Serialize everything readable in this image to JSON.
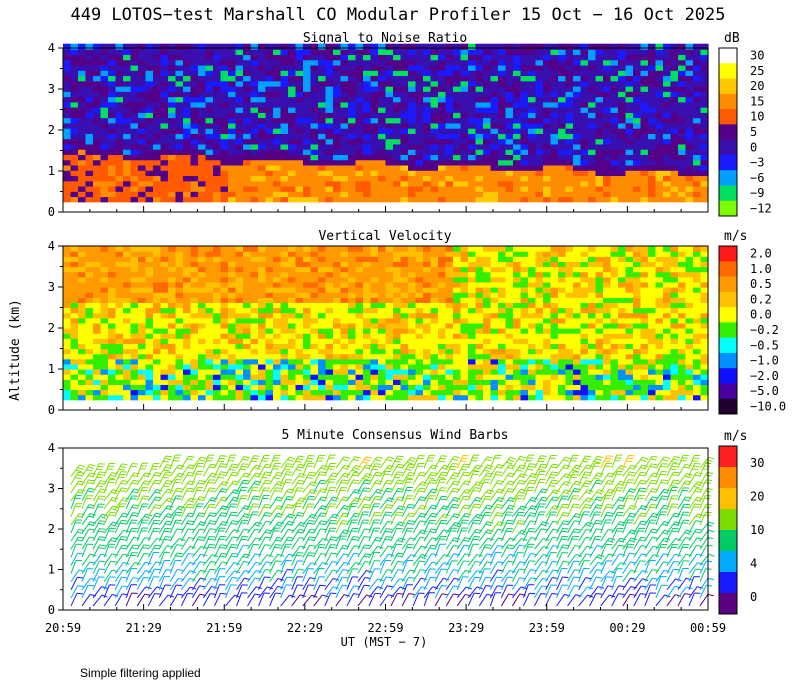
{
  "page_title": "449 LOTOS−test Marshall CO Modular Profiler 15 Oct − 16 Oct 2025",
  "y_axis_label": "Altitude (km)",
  "x_axis_label": "UT  (MST − 7)",
  "footnote": "Simple filtering applied",
  "x_tick_labels": [
    "20:59",
    "21:29",
    "21:59",
    "22:29",
    "22:59",
    "23:29",
    "23:59",
    "00:29",
    "00:59"
  ],
  "chart_data": [
    {
      "type": "heatmap",
      "title": "Signal to Noise Ratio",
      "ylabel": "Altitude (km)",
      "ylim": [
        0,
        4
      ],
      "y_ticks": [
        "0",
        "1",
        "2",
        "3",
        "4"
      ],
      "colorbar": {
        "unit": "dB",
        "labels": [
          "30",
          "25",
          "20",
          "15",
          "10",
          "5",
          "0",
          "−3",
          "−6",
          "−9",
          "−12"
        ],
        "colors": [
          "#ffffff",
          "#ffff00",
          "#ffc800",
          "#ff8c00",
          "#ff5a00",
          "#550088",
          "#3a0fb0",
          "#1a1aff",
          "#00a0ff",
          "#00e060",
          "#7cfc00"
        ]
      },
      "description_levels": {
        "boundary_layer_top_km": [
          1.3,
          1.0,
          0.8
        ],
        "surface_band_values_dB": [
          10,
          15
        ]
      }
    },
    {
      "type": "heatmap",
      "title": "Vertical Velocity",
      "ylabel": "Altitude (km)",
      "ylim": [
        0,
        4
      ],
      "y_ticks": [
        "0",
        "1",
        "2",
        "3",
        "4"
      ],
      "colorbar": {
        "unit": "m/s",
        "labels": [
          "2.0",
          "1.0",
          "0.5",
          "0.2",
          "0.0",
          "−0.2",
          "−0.5",
          "−1.0",
          "−2.0",
          "−5.0",
          "−10.0"
        ],
        "colors": [
          "#ff1a1a",
          "#ff6a00",
          "#ff9a00",
          "#ffc000",
          "#ffff00",
          "#33ee00",
          "#00ffff",
          "#0090ff",
          "#1010ff",
          "#4a00a0",
          "#200030"
        ]
      }
    },
    {
      "type": "scatter",
      "title": "5 Minute Consensus Wind Barbs",
      "ylabel": "Altitude (km)",
      "ylim": [
        0,
        4
      ],
      "y_ticks": [
        "0",
        "1",
        "2",
        "3",
        "4"
      ],
      "colorbar": {
        "unit": "m/s",
        "labels": [
          "30",
          "20",
          "10",
          "4",
          "0"
        ],
        "colors": [
          "#ff2020",
          "#ff8c00",
          "#ffc000",
          "#7cdc00",
          "#00cc66",
          "#00aaff",
          "#1a1aff",
          "#5a0080"
        ]
      },
      "wind_profile": [
        {
          "alt_km": 0.2,
          "speed_ms": 3
        },
        {
          "alt_km": 0.6,
          "speed_ms": 5
        },
        {
          "alt_km": 1.2,
          "speed_ms": 7
        },
        {
          "alt_km": 2.0,
          "speed_ms": 9
        },
        {
          "alt_km": 2.8,
          "speed_ms": 11
        },
        {
          "alt_km": 3.6,
          "speed_ms": 13
        }
      ]
    }
  ]
}
